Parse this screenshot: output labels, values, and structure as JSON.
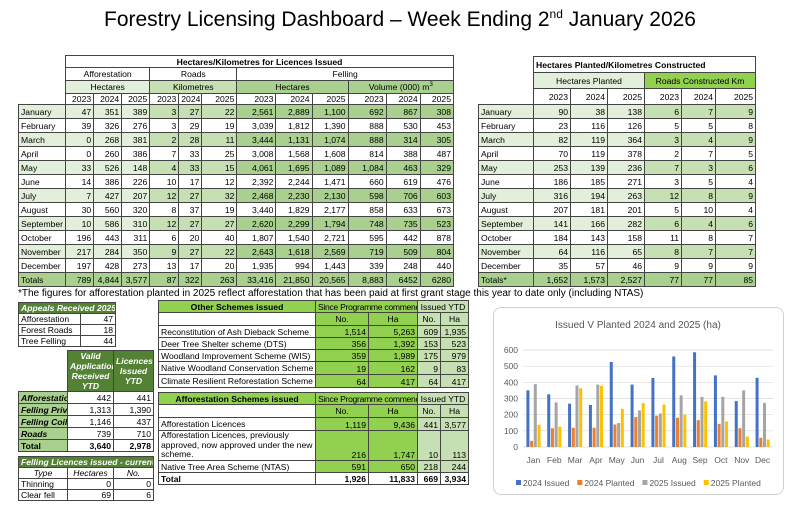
{
  "title": {
    "text": "Forestry Licensing Dashboard – Week Ending 2",
    "sup": "nd",
    "tail": " January 2026"
  },
  "licences": {
    "title": "Hectares/Kilometres for Licences Issued",
    "groups": [
      "Afforestation",
      "Roads",
      "Felling"
    ],
    "units": [
      "Hectares",
      "Kilometres",
      "Hectares",
      "Volume (000) m"
    ],
    "unit_sup": "3",
    "years": [
      "2023",
      "2024",
      "2025"
    ],
    "rows": [
      {
        "month": "January",
        "values": [
          "47",
          "351",
          "389",
          "3",
          "27",
          "22",
          "2,561",
          "2,889",
          "1,100",
          "692",
          "867",
          "308"
        ]
      },
      {
        "month": "February",
        "values": [
          "39",
          "326",
          "276",
          "3",
          "29",
          "19",
          "3,039",
          "1,812",
          "1,390",
          "888",
          "530",
          "453"
        ]
      },
      {
        "month": "March",
        "values": [
          "0",
          "268",
          "381",
          "2",
          "28",
          "11",
          "3,444",
          "1,131",
          "1,074",
          "888",
          "314",
          "305"
        ]
      },
      {
        "month": "April",
        "values": [
          "0",
          "260",
          "386",
          "7",
          "33",
          "25",
          "3,008",
          "1,568",
          "1,608",
          "814",
          "388",
          "487"
        ]
      },
      {
        "month": "May",
        "values": [
          "33",
          "526",
          "148",
          "4",
          "33",
          "15",
          "4,061",
          "1,695",
          "1,089",
          "1,084",
          "463",
          "329"
        ]
      },
      {
        "month": "June",
        "values": [
          "14",
          "386",
          "226",
          "10",
          "17",
          "12",
          "2,392",
          "2,244",
          "1,471",
          "660",
          "619",
          "476"
        ]
      },
      {
        "month": "July",
        "values": [
          "7",
          "427",
          "207",
          "12",
          "27",
          "32",
          "2,468",
          "2,230",
          "2,130",
          "598",
          "706",
          "603"
        ]
      },
      {
        "month": "August",
        "values": [
          "30",
          "560",
          "320",
          "8",
          "37",
          "19",
          "3,440",
          "1,829",
          "2,177",
          "858",
          "633",
          "673"
        ]
      },
      {
        "month": "September",
        "values": [
          "10",
          "586",
          "310",
          "12",
          "27",
          "27",
          "2,620",
          "2,299",
          "1,794",
          "748",
          "735",
          "523"
        ]
      },
      {
        "month": "October",
        "values": [
          "196",
          "443",
          "311",
          "6",
          "20",
          "40",
          "1,807",
          "1,540",
          "2,721",
          "595",
          "442",
          "878"
        ]
      },
      {
        "month": "November",
        "values": [
          "217",
          "284",
          "350",
          "9",
          "27",
          "22",
          "2,643",
          "1,618",
          "2,569",
          "719",
          "509",
          "804"
        ]
      },
      {
        "month": "December",
        "values": [
          "197",
          "428",
          "273",
          "13",
          "17",
          "20",
          "1,935",
          "994",
          "1,443",
          "339",
          "248",
          "440"
        ]
      }
    ],
    "totals": {
      "label": "Totals",
      "values": [
        "789",
        "4,844",
        "3,577",
        "87",
        "322",
        "263",
        "33,416",
        "21,850",
        "20,565",
        "8,883",
        "6452",
        "6280"
      ]
    }
  },
  "planted": {
    "title": "Hectares Planted/Kilometres Constructed",
    "groups": [
      "Hectares Planted",
      "Roads Constructed Km"
    ],
    "years": [
      "2023",
      "2024",
      "2025"
    ],
    "rows": [
      {
        "month": "January",
        "values": [
          "90",
          "38",
          "138",
          "6",
          "7",
          "9"
        ]
      },
      {
        "month": "February",
        "values": [
          "23",
          "116",
          "126",
          "5",
          "5",
          "8"
        ]
      },
      {
        "month": "March",
        "values": [
          "82",
          "119",
          "364",
          "3",
          "4",
          "9"
        ]
      },
      {
        "month": "April",
        "values": [
          "70",
          "119",
          "378",
          "2",
          "7",
          "5"
        ]
      },
      {
        "month": "May",
        "values": [
          "253",
          "139",
          "236",
          "7",
          "3",
          "6"
        ]
      },
      {
        "month": "June",
        "values": [
          "186",
          "185",
          "271",
          "3",
          "5",
          "4"
        ]
      },
      {
        "month": "July",
        "values": [
          "316",
          "194",
          "263",
          "12",
          "8",
          "9"
        ]
      },
      {
        "month": "August",
        "values": [
          "207",
          "181",
          "201",
          "5",
          "10",
          "4"
        ]
      },
      {
        "month": "September",
        "values": [
          "141",
          "166",
          "282",
          "6",
          "4",
          "6"
        ]
      },
      {
        "month": "October",
        "values": [
          "184",
          "143",
          "158",
          "11",
          "8",
          "7"
        ]
      },
      {
        "month": "November",
        "values": [
          "64",
          "116",
          "65",
          "8",
          "7",
          "7"
        ]
      },
      {
        "month": "December",
        "values": [
          "35",
          "57",
          "46",
          "9",
          "9",
          "9"
        ]
      }
    ],
    "totals": {
      "label": "Totals*",
      "values": [
        "1,652",
        "1,573",
        "2,527",
        "77",
        "77",
        "85"
      ]
    }
  },
  "footnote": "*The figures for afforestation planted in 2025 reflect afforestation that has been paid at first grant stage this year to date only (including NTAS)",
  "appeals": {
    "title": "Appeals Received 2025",
    "rows": [
      [
        "Afforestation",
        "47"
      ],
      [
        "Forest Roads",
        "18"
      ],
      [
        "Tree Felling",
        "44"
      ]
    ]
  },
  "applications": {
    "headers": [
      "Valid Applications Received YTD",
      "Licences Issued YTD"
    ],
    "rows": [
      [
        "Afforestation",
        "442",
        "441"
      ],
      [
        "Felling Private",
        "1,313",
        "1,390"
      ],
      [
        "Felling Coillte",
        "1,146",
        "437"
      ],
      [
        "Roads",
        "739",
        "710"
      ]
    ],
    "total": [
      "Total",
      "3,640",
      "2,978"
    ]
  },
  "felling_week": {
    "title": "Felling Licences issued - current week",
    "headers": [
      "Type",
      "Hectares",
      "No."
    ],
    "rows": [
      [
        "Thinning",
        "0",
        "0"
      ],
      [
        "Clear fell",
        "69",
        "6"
      ]
    ]
  },
  "other_schemes": {
    "title": "Other Schemes issued",
    "since": "Since Programme commenced",
    "ytd": "Issued YTD",
    "sub": [
      "No.",
      "Ha",
      "No.",
      "Ha"
    ],
    "rows": [
      {
        "name": "Reconstitution of Ash Dieback Scheme",
        "values": [
          "1,514",
          "5,263",
          "609",
          "1,935"
        ]
      },
      {
        "name": "Deer Tree Shelter scheme (DTS)",
        "values": [
          "356",
          "1,392",
          "153",
          "523"
        ]
      },
      {
        "name": "Woodland Improvement Scheme (WIS)",
        "values": [
          "359",
          "1,989",
          "175",
          "979"
        ]
      },
      {
        "name": "Native Woodland Conservation Scheme",
        "values": [
          "19",
          "162",
          "9",
          "83"
        ]
      },
      {
        "name": "Climate Resilient Reforestation Scheme",
        "values": [
          "64",
          "417",
          "64",
          "417"
        ]
      }
    ]
  },
  "aff_schemes": {
    "title": "Afforestation Schemes issued",
    "since": "Since Programme commenced",
    "ytd": "Issued YTD",
    "sub": [
      "No.",
      "Ha",
      "No.",
      "Ha"
    ],
    "rows": [
      {
        "name": "Afforestation Licences",
        "values": [
          "1,119",
          "9,436",
          "441",
          "3,577"
        ]
      },
      {
        "name": "Afforestation Licences, previously approved, now approved under the new scheme.",
        "values": [
          "216",
          "1,747",
          "10",
          "113"
        ]
      },
      {
        "name": "Native Tree Area Scheme (NTAS)",
        "values": [
          "591",
          "650",
          "218",
          "244"
        ]
      }
    ],
    "total": {
      "name": "Total",
      "values": [
        "1,926",
        "11,833",
        "669",
        "3,934"
      ]
    }
  },
  "chart_data": {
    "type": "bar",
    "title": "Issued V Planted 2024 and 2025 (ha)",
    "categories": [
      "Jan",
      "Feb",
      "Mar",
      "Apr",
      "May",
      "Jun",
      "Jul",
      "Aug",
      "Sep",
      "Oct",
      "Nov",
      "Dec"
    ],
    "ylim": [
      0,
      600
    ],
    "yticks": [
      "0",
      "100",
      "200",
      "300",
      "400",
      "500",
      "600"
    ],
    "grid": true,
    "legend": "bottom",
    "series": [
      {
        "name": "2024 Issued",
        "color": "#4472c4",
        "values": [
          351,
          326,
          268,
          260,
          526,
          386,
          427,
          560,
          586,
          443,
          284,
          428
        ]
      },
      {
        "name": "2024 Planted",
        "color": "#ed7d31",
        "values": [
          38,
          116,
          119,
          119,
          139,
          185,
          194,
          181,
          166,
          143,
          116,
          57
        ]
      },
      {
        "name": "2025 Issued",
        "color": "#a5a5a5",
        "values": [
          389,
          276,
          381,
          386,
          148,
          226,
          207,
          320,
          310,
          311,
          350,
          273
        ]
      },
      {
        "name": "2025 Planted",
        "color": "#ffc000",
        "values": [
          138,
          126,
          364,
          378,
          236,
          271,
          263,
          201,
          282,
          158,
          65,
          46
        ]
      }
    ]
  }
}
